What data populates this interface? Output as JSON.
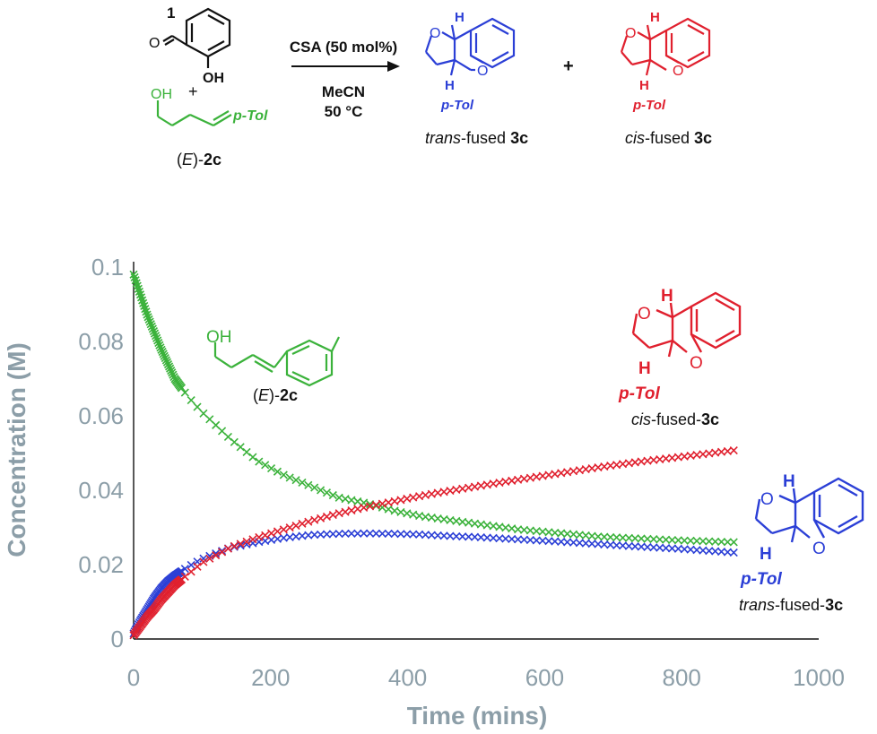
{
  "scheme": {
    "reagent1_number": "1",
    "reagent1_oxygen": "O",
    "reagent1_hydroxyl": "OH",
    "plus_left": "+",
    "reagent2_hydroxyl": "OH",
    "reagent2_aryl": "p-Tol",
    "reagent2_name_prefix": "(",
    "reagent2_name_italic": "E",
    "reagent2_name_suffix": ")-",
    "reagent2_name_bold": "2c",
    "conditions_catalyst": "CSA (50 mol%)",
    "conditions_solvent": "MeCN",
    "conditions_temp": "50 °C",
    "product_trans_H": "H",
    "product_trans_H2": "H",
    "product_trans_O1": "O",
    "product_trans_O2": "O",
    "product_trans_aryl": "p-Tol",
    "product_trans_label_italic": "trans",
    "product_trans_label_mid": "-fused ",
    "product_trans_label_bold": "3c",
    "plus_right": "+",
    "product_cis_H": "H",
    "product_cis_H2": "H",
    "product_cis_O1": "O",
    "product_cis_O2": "O",
    "product_cis_aryl": "p-Tol",
    "product_cis_label_italic": "cis",
    "product_cis_label_mid": "-fused ",
    "product_cis_label_bold": "3c"
  },
  "colors": {
    "green": "#3bb23b",
    "blue": "#2b3fd6",
    "red": "#e0202e",
    "axis_text": "#8c9ea8",
    "black": "#111111"
  },
  "chart_data": {
    "type": "scatter",
    "xlabel": "Time (mins)",
    "ylabel": "Concentration (M)",
    "xlim": [
      0,
      1000
    ],
    "ylim": [
      0,
      0.1
    ],
    "xticks": [
      "0",
      "200",
      "400",
      "600",
      "800",
      "1000"
    ],
    "yticks": [
      "0",
      "0.02",
      "0.04",
      "0.06",
      "0.08",
      "0.1"
    ],
    "grid": false,
    "marker": "x",
    "series": [
      {
        "name": "(E)-2c",
        "color": "#3bb23b",
        "x": [
          0,
          20,
          40,
          60,
          80,
          100,
          140,
          180,
          220,
          260,
          300,
          340,
          380,
          420,
          460,
          500,
          560,
          620,
          680,
          740,
          800,
          880
        ],
        "y": [
          0.098,
          0.087,
          0.078,
          0.07,
          0.065,
          0.061,
          0.054,
          0.048,
          0.044,
          0.041,
          0.038,
          0.0365,
          0.0345,
          0.033,
          0.032,
          0.031,
          0.0295,
          0.0285,
          0.0275,
          0.027,
          0.0265,
          0.026
        ]
      },
      {
        "name": "trans-fused-3c",
        "color": "#2b3fd6",
        "x": [
          0,
          10,
          20,
          30,
          40,
          50,
          60,
          80,
          100,
          140,
          180,
          220,
          260,
          300,
          340,
          380,
          420,
          460,
          500,
          560,
          620,
          680,
          740,
          800,
          880
        ],
        "y": [
          0.0015,
          0.005,
          0.008,
          0.011,
          0.0135,
          0.0155,
          0.017,
          0.0195,
          0.0215,
          0.0245,
          0.026,
          0.0272,
          0.028,
          0.0283,
          0.0284,
          0.0283,
          0.0281,
          0.0277,
          0.0274,
          0.0268,
          0.0262,
          0.0255,
          0.0248,
          0.0242,
          0.0232
        ]
      },
      {
        "name": "cis-fused-3c",
        "color": "#e0202e",
        "x": [
          0,
          10,
          20,
          30,
          40,
          50,
          60,
          80,
          100,
          140,
          180,
          220,
          260,
          300,
          340,
          380,
          420,
          460,
          500,
          560,
          620,
          680,
          740,
          800,
          880
        ],
        "y": [
          0.001,
          0.0035,
          0.006,
          0.008,
          0.0105,
          0.0125,
          0.0145,
          0.0175,
          0.0205,
          0.0245,
          0.0272,
          0.0295,
          0.0318,
          0.0338,
          0.0355,
          0.037,
          0.0385,
          0.0398,
          0.041,
          0.0428,
          0.0445,
          0.0462,
          0.0477,
          0.049,
          0.0508
        ]
      }
    ],
    "annotations": {
      "e2c": {
        "oh": "OH",
        "prefix": "(",
        "italic": "E",
        "suffix": ")-",
        "bold": "2c"
      },
      "cis": {
        "o1": "O",
        "o2": "O",
        "h1": "H",
        "h2": "H",
        "aryl": "p-Tol",
        "italic": "cis",
        "rest": "-fused-",
        "bold": "3c"
      },
      "trans": {
        "o1": "O",
        "o2": "O",
        "h1": "H",
        "h2": "H",
        "aryl": "p-Tol",
        "italic": "trans",
        "rest": "-fused-",
        "bold": "3c"
      }
    }
  }
}
